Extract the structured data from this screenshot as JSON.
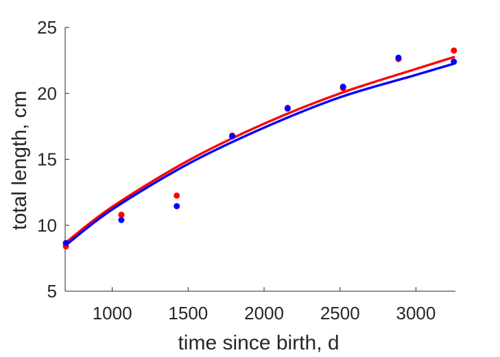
{
  "chart_data": {
    "type": "scatter",
    "xlabel": "time since birth, d",
    "ylabel": "total length, cm",
    "xlim": [
      690,
      3260
    ],
    "ylim": [
      5,
      25
    ],
    "xticks": [
      1000,
      1500,
      2000,
      2500,
      3000
    ],
    "yticks": [
      5,
      10,
      15,
      20,
      25
    ],
    "grid": false,
    "series": [
      {
        "color": "#ff0000",
        "points": [
          {
            "x": 695,
            "y": 8.4
          },
          {
            "x": 1060,
            "y": 10.8
          },
          {
            "x": 1425,
            "y": 12.25
          },
          {
            "x": 1790,
            "y": 16.8
          },
          {
            "x": 2155,
            "y": 18.9
          },
          {
            "x": 2520,
            "y": 20.4
          },
          {
            "x": 2885,
            "y": 22.6
          },
          {
            "x": 3250,
            "y": 23.25
          }
        ],
        "fit_curve": [
          {
            "x": 695,
            "y": 8.7
          },
          {
            "x": 1000,
            "y": 11.4
          },
          {
            "x": 1500,
            "y": 14.9
          },
          {
            "x": 2000,
            "y": 17.7
          },
          {
            "x": 2500,
            "y": 20.0
          },
          {
            "x": 3000,
            "y": 21.85
          },
          {
            "x": 3250,
            "y": 22.75
          }
        ]
      },
      {
        "color": "#0000ff",
        "points": [
          {
            "x": 695,
            "y": 8.65
          },
          {
            "x": 1060,
            "y": 10.4
          },
          {
            "x": 1425,
            "y": 11.45
          },
          {
            "x": 1790,
            "y": 16.75
          },
          {
            "x": 2155,
            "y": 18.85
          },
          {
            "x": 2520,
            "y": 20.5
          },
          {
            "x": 2885,
            "y": 22.7
          },
          {
            "x": 3250,
            "y": 22.4
          }
        ],
        "fit_curve": [
          {
            "x": 695,
            "y": 8.5
          },
          {
            "x": 1000,
            "y": 11.2
          },
          {
            "x": 1500,
            "y": 14.65
          },
          {
            "x": 2000,
            "y": 17.4
          },
          {
            "x": 2500,
            "y": 19.7
          },
          {
            "x": 3000,
            "y": 21.4
          },
          {
            "x": 3250,
            "y": 22.25
          }
        ]
      }
    ]
  }
}
